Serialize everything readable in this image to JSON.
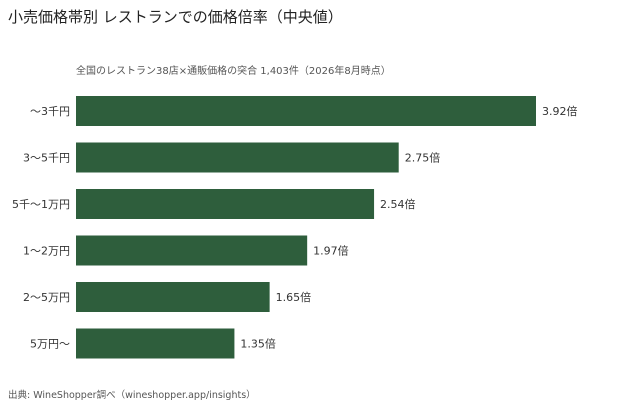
{
  "header": {
    "title": "小売価格帯別 レストランでの価格倍率（中央値）",
    "subtitle": "全国のレストラン38店×通販価格の突合 1,403件（2026年8月時点）"
  },
  "footer": {
    "source": "出典: WineShopper調べ（wineshopper.app/insights）"
  },
  "colors": {
    "bar": "#2e5e3c"
  },
  "chart_data": {
    "type": "bar",
    "orientation": "horizontal",
    "categories": [
      "〜3千円",
      "3〜5千円",
      "5千〜1万円",
      "1〜2万円",
      "2〜5万円",
      "5万円〜"
    ],
    "values": [
      3.92,
      2.75,
      2.54,
      1.97,
      1.65,
      1.35
    ],
    "value_labels": [
      "3.92倍",
      "2.75倍",
      "2.54倍",
      "1.97倍",
      "1.65倍",
      "1.35倍"
    ],
    "title": "小売価格帯別 レストランでの価格倍率（中央値）",
    "xlabel": "",
    "ylabel": "",
    "xlim": [
      0,
      3.92
    ],
    "grid": false,
    "legend": "none"
  }
}
